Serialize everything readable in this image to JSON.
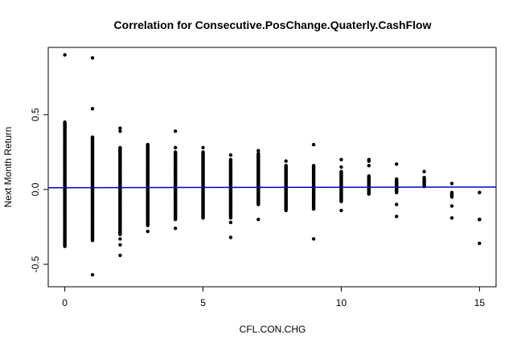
{
  "chart_data": {
    "type": "scatter",
    "title": "Correlation for Consecutive.PosChange.Quaterly.CashFlow",
    "xlabel": "CFL.CON.CHG",
    "ylabel": "Next Month Return",
    "xlim": [
      -0.6,
      15.6
    ],
    "ylim": [
      -0.65,
      0.95
    ],
    "x_ticks": [
      0,
      5,
      10,
      15
    ],
    "y_ticks": [
      -0.5,
      0.0,
      0.5
    ],
    "x_tick_labels": [
      "0",
      "5",
      "10",
      "15"
    ],
    "y_tick_labels": [
      "-0.5",
      "0.0",
      "0.5"
    ],
    "grid": false,
    "legend": "none",
    "point_color": "#000000",
    "line_color": "#0000cc",
    "regression_line": {
      "intercept": 0.012,
      "slope": 0.0003
    },
    "columns": [
      {
        "x": 0,
        "lo": -0.38,
        "hi": 0.45,
        "extra": [
          0.9,
          0.42,
          0.38,
          -0.37
        ]
      },
      {
        "x": 1,
        "lo": -0.34,
        "hi": 0.35,
        "extra": [
          0.88,
          0.54,
          0.34,
          -0.3,
          -0.57
        ]
      },
      {
        "x": 2,
        "lo": -0.3,
        "hi": 0.28,
        "extra": [
          0.41,
          0.39,
          -0.33,
          -0.37,
          -0.44
        ]
      },
      {
        "x": 3,
        "lo": -0.24,
        "hi": 0.3,
        "extra": [
          0.3,
          0.28,
          -0.28
        ]
      },
      {
        "x": 4,
        "lo": -0.2,
        "hi": 0.25,
        "extra": [
          0.39,
          0.28,
          -0.26
        ]
      },
      {
        "x": 5,
        "lo": -0.19,
        "hi": 0.25,
        "extra": [
          0.28
        ]
      },
      {
        "x": 6,
        "lo": -0.19,
        "hi": 0.2,
        "extra": [
          0.23,
          -0.22,
          -0.32
        ]
      },
      {
        "x": 7,
        "lo": -0.1,
        "hi": 0.24,
        "extra": [
          0.26,
          -0.2
        ]
      },
      {
        "x": 8,
        "lo": -0.14,
        "hi": 0.16,
        "extra": [
          0.19
        ]
      },
      {
        "x": 9,
        "lo": -0.13,
        "hi": 0.16,
        "extra": [
          0.3,
          -0.33
        ]
      },
      {
        "x": 10,
        "lo": -0.08,
        "hi": 0.12,
        "extra": [
          0.2,
          0.15,
          -0.14
        ]
      },
      {
        "x": 11,
        "lo": -0.03,
        "hi": 0.09,
        "extra": [
          0.2,
          0.19,
          0.16
        ]
      },
      {
        "x": 12,
        "lo": -0.02,
        "hi": 0.07,
        "extra": [
          0.17,
          -0.1,
          -0.18
        ]
      },
      {
        "x": 13,
        "lo": 0.02,
        "hi": 0.08,
        "extra": [
          0.12
        ]
      },
      {
        "x": 14,
        "lo": -0.05,
        "hi": -0.02,
        "extra": [
          0.04,
          -0.11,
          -0.19
        ]
      },
      {
        "x": 15,
        "lo": -0.2,
        "hi": -0.2,
        "extra": [
          -0.02,
          -0.36
        ]
      }
    ]
  }
}
